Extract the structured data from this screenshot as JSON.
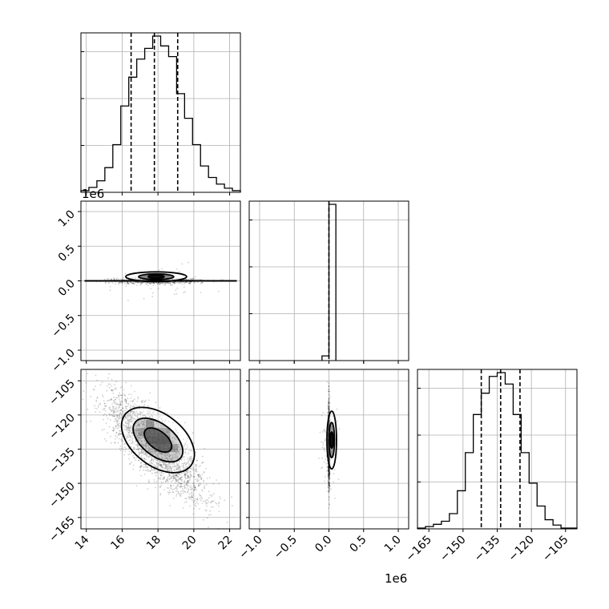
{
  "chart_data": {
    "type": "corner",
    "variables": [
      {
        "ticks": [
          14,
          16,
          18,
          20,
          22
        ],
        "tick_labels": [
          "14",
          "16",
          "18",
          "20",
          "22"
        ],
        "range": [
          13.7,
          22.6
        ],
        "offset_text": ""
      },
      {
        "ticks": [
          -1.0,
          -0.5,
          0.0,
          0.5,
          1.0
        ],
        "tick_labels": [
          "−1.0",
          "−0.5",
          "0.0",
          "0.5",
          "1.0"
        ],
        "range": [
          -1.15,
          1.15
        ],
        "offset_text": "1e6"
      },
      {
        "ticks": [
          -165,
          -150,
          -135,
          -120,
          -105
        ],
        "tick_labels": [
          "−165",
          "−150",
          "−135",
          "−120",
          "−105"
        ],
        "range": [
          -170,
          -100
        ],
        "offset_text": ""
      }
    ],
    "quantiles": [
      [
        16.5,
        17.8,
        19.1
      ],
      [
        0.0
      ],
      [
        -142,
        -133.5,
        -125
      ]
    ],
    "histograms": [
      {
        "edges": [
          13.7,
          14.145,
          14.59,
          15.035,
          15.48,
          15.925,
          16.37,
          16.815,
          17.26,
          17.705,
          18.15,
          18.595,
          19.04,
          19.485,
          19.93,
          20.375,
          20.82,
          21.265,
          21.71,
          22.155,
          22.6
        ],
        "counts": [
          2,
          6,
          14,
          30,
          58,
          105,
          140,
          162,
          175,
          190,
          178,
          165,
          120,
          90,
          58,
          32,
          18,
          10,
          5,
          2
        ]
      },
      {
        "edges": [
          -0.1,
          0.0,
          0.1
        ],
        "counts": [
          3,
          100
        ]
      },
      {
        "edges": [
          -170,
          -166.5,
          -163,
          -159.5,
          -156,
          -152.5,
          -149,
          -145.5,
          -142,
          -138.5,
          -135,
          -131.5,
          -128,
          -124.5,
          -121,
          -117.5,
          -114,
          -110.5,
          -107,
          -103.5,
          -100
        ],
        "counts": [
          1,
          3,
          6,
          10,
          20,
          50,
          100,
          150,
          178,
          200,
          205,
          190,
          150,
          100,
          60,
          30,
          12,
          5,
          1,
          1
        ]
      }
    ],
    "grid": true
  }
}
